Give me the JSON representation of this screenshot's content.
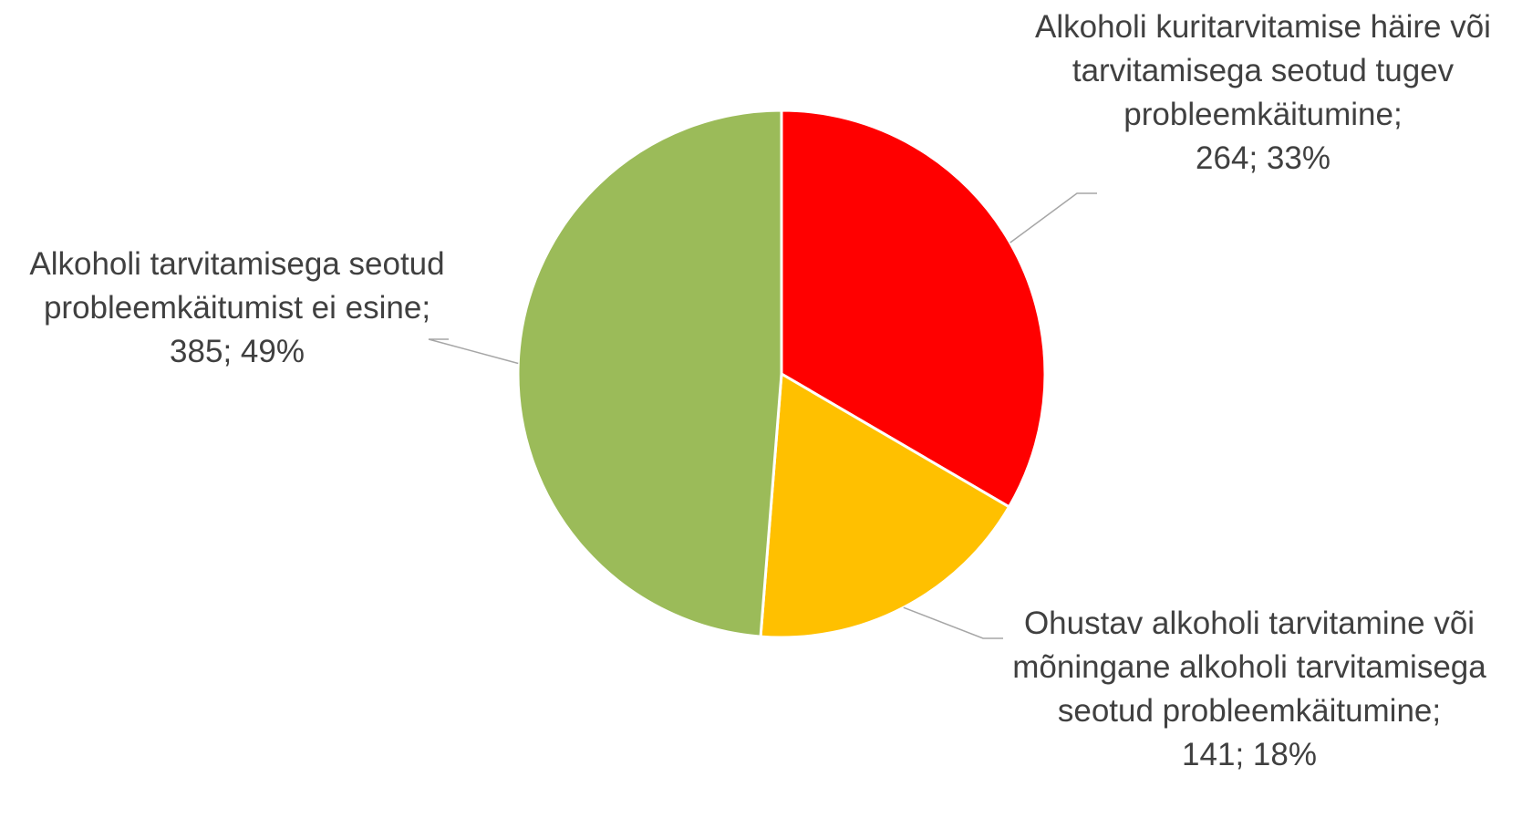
{
  "chart_data": {
    "type": "pie",
    "colors": [
      "#ff0000",
      "#ffc000",
      "#9bbb59"
    ],
    "slices": [
      {
        "label": "Alkoholi kuritarvitamise häire või tarvitamisega seotud tugev probleemkäitumine;",
        "value": 264,
        "percent": "33%",
        "value_text": "264; 33%",
        "color": "#ff0000"
      },
      {
        "label": "Ohustav alkoholi tarvitamine või mõningane alkoholi tarvitamisega seotud probleemkäitumine;",
        "value": 141,
        "percent": "18%",
        "value_text": "141; 18%",
        "color": "#ffc000"
      },
      {
        "label": "Alkoholi tarvitamisega seotud probleemkäitumist ei esine;",
        "value": 385,
        "percent": "49%",
        "value_text": "385; 49%",
        "color": "#9bbb59"
      }
    ],
    "title": "",
    "legend": "none",
    "start_angle": "12 o'clock",
    "direction": "clockwise"
  }
}
